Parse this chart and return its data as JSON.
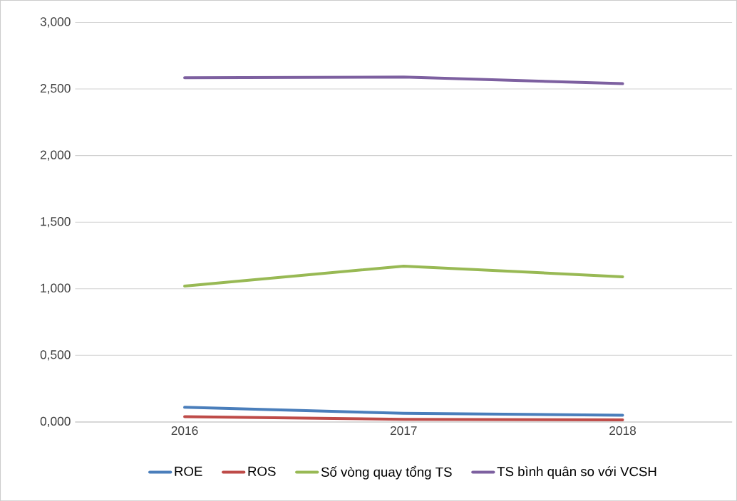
{
  "chart_data": {
    "type": "line",
    "categories": [
      "2016",
      "2017",
      "2018"
    ],
    "series": [
      {
        "name": "ROE",
        "color": "#4a7ebb",
        "values": [
          0.11,
          0.065,
          0.05
        ]
      },
      {
        "name": "ROS",
        "color": "#be4b48",
        "values": [
          0.04,
          0.02,
          0.015
        ]
      },
      {
        "name": "Số vòng quay tổng TS",
        "color": "#98b954",
        "values": [
          1.02,
          1.17,
          1.09
        ]
      },
      {
        "name": "TS bình quân so với VCSH",
        "color": "#7d60a0",
        "values": [
          2.585,
          2.59,
          2.54
        ]
      }
    ],
    "ylim": [
      0,
      3
    ],
    "yticks": [
      {
        "value": 0,
        "label": "0,000"
      },
      {
        "value": 0.5,
        "label": "0,500"
      },
      {
        "value": 1,
        "label": "1,000"
      },
      {
        "value": 1.5,
        "label": "1,500"
      },
      {
        "value": 2,
        "label": "2,000"
      },
      {
        "value": 2.5,
        "label": "2,500"
      },
      {
        "value": 3,
        "label": "3,000"
      }
    ],
    "grid": "y",
    "legend": "bottom",
    "marker": "none",
    "line_style": "solid"
  }
}
